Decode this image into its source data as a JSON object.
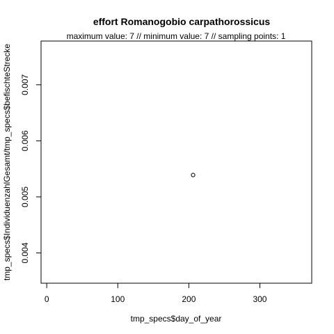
{
  "chart_data": {
    "type": "scatter",
    "title": "effort Romanogobio carpathorossicus",
    "subtitle": "maximum value: 7  //  minimum value: 7  // sampling points: 1",
    "xlabel": "tmp_specs$day_of_year",
    "ylabel": "tmp_specs$IndividuenzahlGesamt/tmp_specs$befischteStrecke",
    "xlim": [
      -8,
      373
    ],
    "ylim": [
      0.00346,
      0.00778
    ],
    "x_ticks": [
      0,
      100,
      200,
      300
    ],
    "x_tick_labels": [
      "0",
      "100",
      "200",
      "300"
    ],
    "y_ticks": [
      0.004,
      0.005,
      0.006,
      0.007
    ],
    "y_tick_labels": [
      "0.004",
      "0.005",
      "0.006",
      "0.007"
    ],
    "points": [
      {
        "x": 206,
        "y": 0.00539
      }
    ],
    "grid": false
  }
}
